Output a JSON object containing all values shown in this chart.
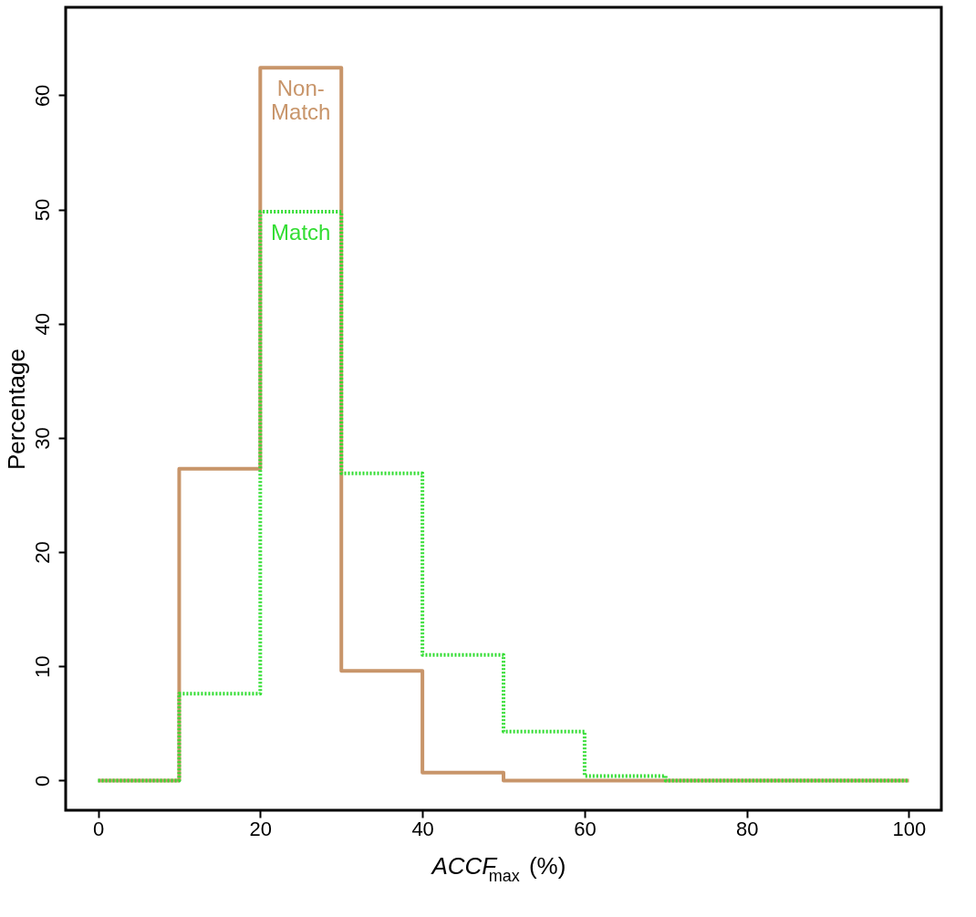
{
  "chart_data": {
    "type": "histogram",
    "xlabel": "ACCF$_{max}$ (%)",
    "ylabel": "Percentage",
    "bins": [
      0,
      10,
      20,
      30,
      40,
      50,
      60,
      70,
      80,
      90,
      100
    ],
    "series": [
      {
        "name": "Non-Match",
        "color": "#c8956a",
        "line_style": "solid",
        "values": [
          0,
          27.3,
          62.4,
          9.6,
          0.7,
          0,
          0,
          0,
          0,
          0
        ]
      },
      {
        "name": "Match",
        "color": "#33dd33",
        "line_style": "dotted",
        "values": [
          0,
          7.6,
          49.8,
          26.9,
          11.0,
          4.3,
          0.4,
          0,
          0,
          0
        ]
      }
    ],
    "xlim": [
      -4,
      104
    ],
    "ylim": [
      -2.6,
      67.7
    ],
    "xticks": [
      0,
      20,
      40,
      60,
      80,
      100
    ],
    "yticks": [
      0,
      10,
      20,
      30,
      40,
      50,
      60
    ],
    "grid": false
  }
}
